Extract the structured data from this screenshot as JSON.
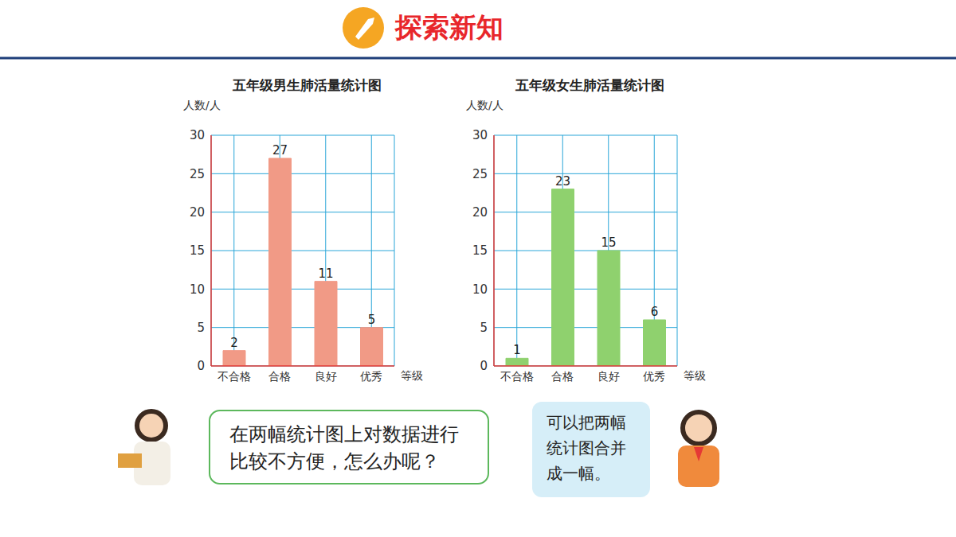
{
  "header": "探索新知",
  "teacher_bubble": "在两幅统计图上对数据进行比较不方便，怎么办呢？",
  "student_bubble": "可以把两幅统计图合并成一幅。",
  "chart_data": [
    {
      "type": "bar",
      "title": "五年级男生肺活量统计图",
      "ylabel": "人数/人",
      "xlabel": "等级",
      "categories": [
        "不合格",
        "合格",
        "良好",
        "优秀"
      ],
      "values": [
        2,
        27,
        11,
        5
      ],
      "color": "#f19a86",
      "ylim": [
        0,
        30
      ],
      "yticks": [
        0,
        5,
        10,
        15,
        20,
        25,
        30
      ],
      "grid": true,
      "data_labels": true
    },
    {
      "type": "bar",
      "title": "五年级女生肺活量统计图",
      "ylabel": "人数/人",
      "xlabel": "等级",
      "categories": [
        "不合格",
        "合格",
        "良好",
        "优秀"
      ],
      "values": [
        1,
        23,
        15,
        6
      ],
      "color": "#8fd16e",
      "ylim": [
        0,
        30
      ],
      "yticks": [
        0,
        5,
        10,
        15,
        20,
        25,
        30
      ],
      "grid": true,
      "data_labels": true
    }
  ]
}
